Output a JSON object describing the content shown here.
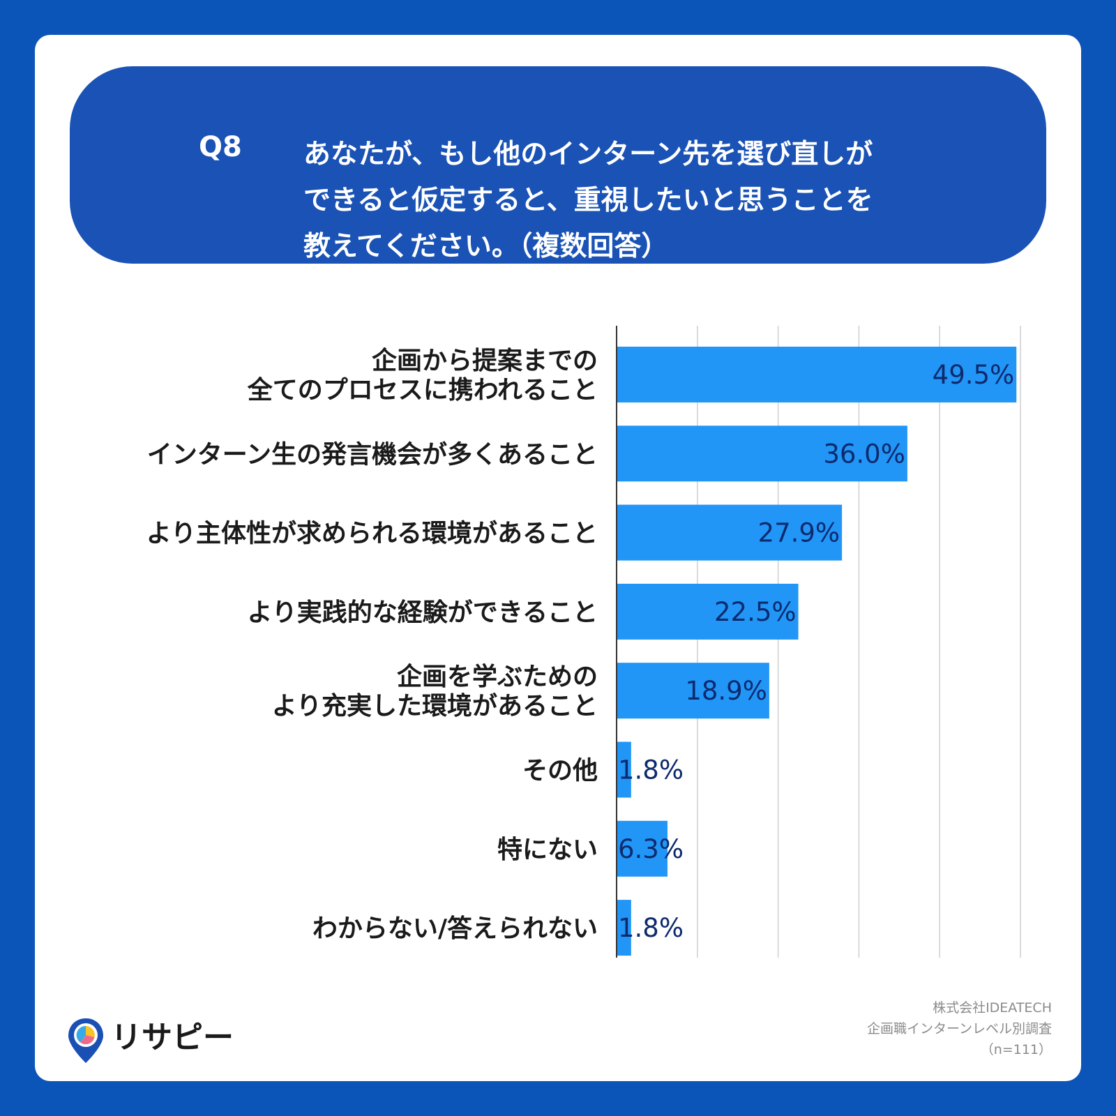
{
  "question": {
    "number": "Q8",
    "lines": [
      "あなたが、もし他のインターン先を選び直しが",
      "できると仮定すると、重視したいと思うことを",
      "教えてください。（複数回答）"
    ]
  },
  "chart_data": {
    "type": "bar",
    "orientation": "horizontal",
    "categories": [
      [
        "企画から提案までの",
        "全てのプロセスに携われること"
      ],
      [
        "インターン生の発言機会が多くあること"
      ],
      [
        "より主体性が求められる環境があること"
      ],
      [
        "より実践的な経験ができること"
      ],
      [
        "企画を学ぶための",
        "より充実した環境があること"
      ],
      [
        "その他"
      ],
      [
        "特にない"
      ],
      [
        "わからない/答えられない"
      ]
    ],
    "values": [
      49.5,
      36.0,
      27.9,
      22.5,
      18.9,
      1.8,
      6.3,
      1.8
    ],
    "value_labels": [
      "49.5%",
      "36.0%",
      "27.9%",
      "22.5%",
      "18.9%",
      "1.8%",
      "6.3%",
      "1.8%"
    ],
    "xlim": [
      0,
      50
    ],
    "grid": true,
    "colors": {
      "bar": "#2196f7",
      "label": "#0d2a6e",
      "grid": "#cfcfcf",
      "axis": "#333333"
    }
  },
  "source": {
    "lines": [
      "株式会社IDEATECH",
      "企画職インターンレベル別調査",
      "（n=111）"
    ]
  },
  "logo": {
    "text": "リサピー",
    "icon": "map-pin-pie-icon"
  }
}
